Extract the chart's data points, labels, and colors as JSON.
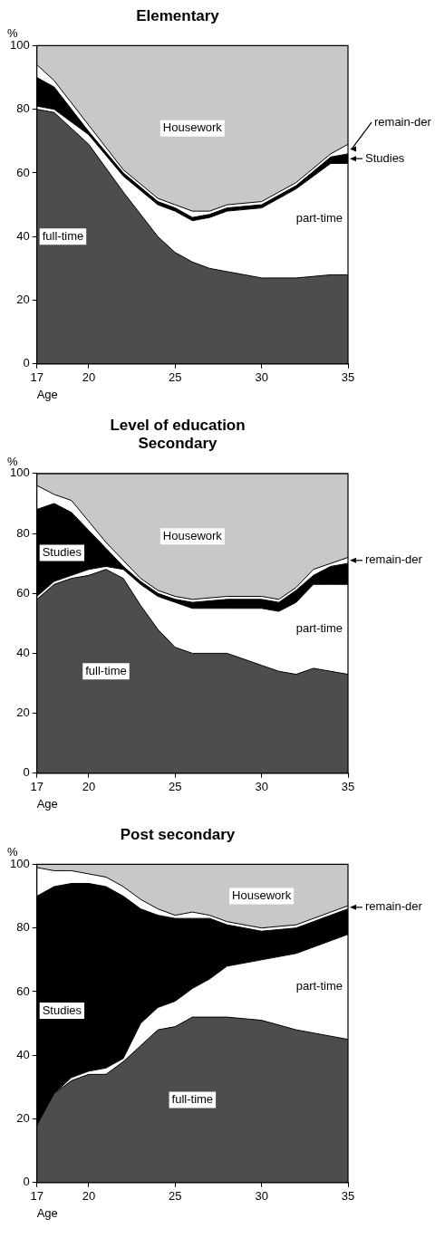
{
  "chart_data": [
    {
      "type": "area",
      "title": "Elementary",
      "xlabel": "Age",
      "ylabel": "%",
      "stacked": true,
      "xlim": [
        17,
        35
      ],
      "xticks": [
        17,
        20,
        25,
        30,
        35
      ],
      "ylim": [
        0,
        100
      ],
      "yticks": [
        0,
        20,
        40,
        60,
        80,
        100
      ],
      "x": [
        17,
        18,
        20,
        22,
        24,
        25,
        26,
        27,
        28,
        30,
        32,
        34,
        35
      ],
      "series": [
        {
          "name": "full-time",
          "color": "#4d4d4d",
          "values": [
            80,
            79,
            69,
            54,
            40,
            35,
            32,
            30,
            29,
            27,
            27,
            28,
            28
          ]
        },
        {
          "name": "part-time",
          "color": "#ffffff",
          "values": [
            1,
            1,
            3,
            5,
            10,
            13,
            13,
            16,
            19,
            22,
            28,
            35,
            35
          ]
        },
        {
          "name": "Studies",
          "color": "#000000",
          "values": [
            9,
            7,
            1,
            1,
            1,
            1,
            1,
            1,
            1,
            1,
            1,
            2,
            3
          ]
        },
        {
          "name": "remain-der",
          "color": "#ffffff",
          "values": [
            4,
            2,
            2,
            1,
            1,
            1,
            2,
            1,
            1,
            1,
            1,
            1,
            3
          ]
        },
        {
          "name": "Housework",
          "color": "#c8c8c8",
          "values": [
            6,
            11,
            25,
            39,
            48,
            50,
            52,
            52,
            50,
            49,
            43,
            34,
            31
          ]
        }
      ]
    },
    {
      "type": "area",
      "title": "Level of education",
      "subtitle": "Secondary",
      "xlabel": "Age",
      "ylabel": "%",
      "stacked": true,
      "xlim": [
        17,
        35
      ],
      "xticks": [
        17,
        20,
        25,
        30,
        35
      ],
      "ylim": [
        0,
        100
      ],
      "yticks": [
        0,
        20,
        40,
        60,
        80,
        100
      ],
      "x": [
        17,
        18,
        19,
        20,
        21,
        22,
        23,
        24,
        25,
        26,
        28,
        30,
        31,
        32,
        33,
        34,
        35
      ],
      "series": [
        {
          "name": "full-time",
          "color": "#4d4d4d",
          "values": [
            58,
            63,
            65,
            66,
            68,
            65,
            56,
            48,
            42,
            40,
            40,
            36,
            34,
            33,
            35,
            34,
            33
          ]
        },
        {
          "name": "part-time",
          "color": "#ffffff",
          "values": [
            1,
            1,
            1,
            2,
            1,
            3,
            7,
            11,
            15,
            15,
            15,
            19,
            20,
            24,
            28,
            29,
            30
          ]
        },
        {
          "name": "Studies",
          "color": "#000000",
          "values": [
            29,
            26,
            21,
            13,
            6,
            1,
            1,
            1,
            1,
            2,
            3,
            3,
            3,
            4,
            3,
            6,
            7
          ]
        },
        {
          "name": "remain-der",
          "color": "#ffffff",
          "values": [
            8,
            3,
            4,
            3,
            2,
            2,
            1,
            1,
            1,
            1,
            1,
            1,
            1,
            1,
            2,
            1,
            2
          ]
        },
        {
          "name": "Housework",
          "color": "#c8c8c8",
          "values": [
            4,
            7,
            9,
            16,
            23,
            29,
            35,
            39,
            41,
            42,
            41,
            41,
            42,
            38,
            32,
            30,
            28
          ]
        }
      ]
    },
    {
      "type": "area",
      "title": "Post secondary",
      "xlabel": "Age",
      "ylabel": "%",
      "stacked": true,
      "xlim": [
        17,
        35
      ],
      "xticks": [
        17,
        20,
        25,
        30,
        35
      ],
      "ylim": [
        0,
        100
      ],
      "yticks": [
        0,
        20,
        40,
        60,
        80,
        100
      ],
      "x": [
        17,
        18,
        19,
        20,
        21,
        22,
        23,
        24,
        25,
        26,
        27,
        28,
        30,
        32,
        34,
        35
      ],
      "series": [
        {
          "name": "full-time",
          "color": "#4d4d4d",
          "values": [
            18,
            28,
            32,
            34,
            34,
            38,
            43,
            48,
            49,
            52,
            52,
            52,
            51,
            48,
            46,
            45
          ]
        },
        {
          "name": "part-time",
          "color": "#ffffff",
          "values": [
            0,
            0,
            1,
            1,
            2,
            1,
            7,
            7,
            8,
            9,
            12,
            16,
            19,
            24,
            30,
            33
          ]
        },
        {
          "name": "Studies",
          "color": "#000000",
          "values": [
            72,
            65,
            61,
            59,
            57,
            51,
            36,
            29,
            26,
            22,
            19,
            13,
            9,
            8,
            8,
            8
          ]
        },
        {
          "name": "remain-der",
          "color": "#ffffff",
          "values": [
            9,
            5,
            4,
            3,
            3,
            3,
            3,
            2,
            1,
            2,
            1,
            1,
            1,
            1,
            1,
            1
          ]
        },
        {
          "name": "Housework",
          "color": "#c8c8c8",
          "values": [
            1,
            2,
            2,
            3,
            4,
            7,
            11,
            14,
            16,
            15,
            16,
            18,
            20,
            19,
            15,
            13
          ]
        }
      ]
    }
  ]
}
